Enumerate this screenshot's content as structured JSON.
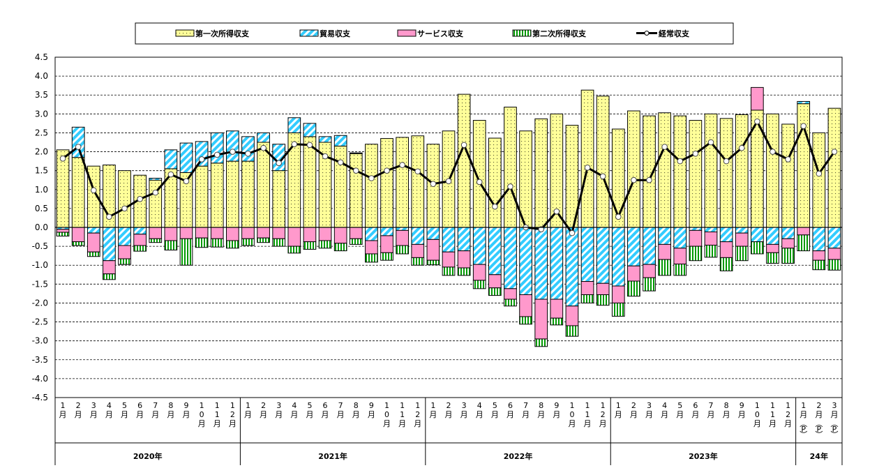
{
  "chart_data": {
    "type": "bar",
    "ylim": [
      -4.5,
      4.5
    ],
    "y_ticks": [
      "4.5",
      "4.0",
      "3.5",
      "3.0",
      "2.5",
      "2.0",
      "1.5",
      "1.0",
      "0.5",
      "0.0",
      "-0.5",
      "-1.0",
      "-1.5",
      "-2.0",
      "-2.5",
      "-3.0",
      "-3.5",
      "-4.0",
      "-4.5"
    ],
    "grid": true,
    "legend_position": "top",
    "stacked": true,
    "x": [
      "2020-01",
      "2020-02",
      "2020-03",
      "2020-04",
      "2020-05",
      "2020-06",
      "2020-07",
      "2020-08",
      "2020-09",
      "2020-10",
      "2020-11",
      "2020-12",
      "2021-01",
      "2021-02",
      "2021-03",
      "2021-04",
      "2021-05",
      "2021-06",
      "2021-07",
      "2021-08",
      "2021-09",
      "2021-10",
      "2021-11",
      "2021-12",
      "2022-01",
      "2022-02",
      "2022-03",
      "2022-04",
      "2022-05",
      "2022-06",
      "2022-07",
      "2022-08",
      "2022-09",
      "2022-10",
      "2022-11",
      "2022-12",
      "2023-01",
      "2023-02",
      "2023-03",
      "2023-04",
      "2023-05",
      "2023-06",
      "2023-07",
      "2023-08",
      "2023-09",
      "2023-10",
      "2023-11",
      "2023-12",
      "2024-01",
      "2024-02",
      "2024-03"
    ],
    "month_labels": [
      "1\n月",
      "2\n月",
      "3\n月",
      "4\n月",
      "5\n月",
      "6\n月",
      "7\n月",
      "8\n月",
      "9\n月",
      "1\n0\n月",
      "1\n1\n月",
      "1\n2\n月",
      "1\n月",
      "2\n月",
      "3\n月",
      "4\n月",
      "5\n月",
      "6\n月",
      "7\n月",
      "8\n月",
      "9\n月",
      "1\n0\n月",
      "1\n1\n月",
      "1\n2\n月",
      "1\n月",
      "2\n月",
      "3\n月",
      "4\n月",
      "5\n月",
      "6\n月",
      "7\n月",
      "8\n月",
      "9\n月",
      "1\n0\n月",
      "1\n1\n月",
      "1\n2\n月",
      "1\n月",
      "2\n月",
      "3\n月",
      "4\n月",
      "5\n月",
      "6\n月",
      "7\n月",
      "8\n月",
      "9\n月",
      "1\n0\n月",
      "1\n1\n月",
      "1\n2\n月",
      "1\n月\n︵\nP\n︶",
      "2\n月\n︵\nP\n︶",
      "3\n月\n︵\nP\n︶"
    ],
    "year_groups": [
      {
        "label": "2020年",
        "count": 12
      },
      {
        "label": "2021年",
        "count": 12
      },
      {
        "label": "2022年",
        "count": 12
      },
      {
        "label": "2023年",
        "count": 12
      },
      {
        "label": "24年",
        "count": 3
      }
    ],
    "series": [
      {
        "name": "第一次所得収支",
        "kind": "bar",
        "color": "#FFFF99",
        "values": [
          2.05,
          1.85,
          1.62,
          1.65,
          1.5,
          1.38,
          1.25,
          1.55,
          1.45,
          1.62,
          1.7,
          1.75,
          1.75,
          2.25,
          1.5,
          2.5,
          2.4,
          2.25,
          2.15,
          1.95,
          2.2,
          2.35,
          2.38,
          2.42,
          2.2,
          2.55,
          3.52,
          2.83,
          2.36,
          3.18,
          2.55,
          2.87,
          3.0,
          2.7,
          3.63,
          3.47,
          2.6,
          3.08,
          2.95,
          3.03,
          2.95,
          2.83,
          3.0,
          2.88,
          2.98,
          3.1,
          3.0,
          2.73,
          3.27,
          2.5,
          3.15
        ]
      },
      {
        "name": "貿易収支",
        "kind": "bar",
        "color": "#33CCFF",
        "values": [
          -0.05,
          0.8,
          -0.15,
          -0.88,
          -0.48,
          -0.18,
          0.05,
          0.5,
          0.78,
          0.65,
          0.8,
          0.8,
          0.65,
          0.25,
          0.7,
          0.4,
          0.35,
          0.15,
          0.28,
          0.02,
          -0.35,
          -0.22,
          -0.08,
          -0.45,
          -0.32,
          -0.65,
          -0.62,
          -0.98,
          -1.25,
          -1.62,
          -1.78,
          -1.9,
          -1.9,
          -2.08,
          -1.43,
          -1.48,
          -1.55,
          -1.02,
          -0.98,
          -0.45,
          -0.55,
          -0.08,
          -0.12,
          -0.38,
          -0.15,
          -0.38,
          -0.45,
          -0.3,
          0.06,
          -0.62,
          -0.55
        ]
      },
      {
        "name": "サービス収支",
        "kind": "bar",
        "color": "#FF99CC",
        "values": [
          -0.08,
          -0.38,
          -0.5,
          -0.35,
          -0.35,
          -0.3,
          -0.3,
          -0.35,
          -0.3,
          -0.28,
          -0.3,
          -0.35,
          -0.3,
          -0.28,
          -0.3,
          -0.5,
          -0.38,
          -0.35,
          -0.42,
          -0.3,
          -0.35,
          -0.45,
          -0.4,
          -0.35,
          -0.55,
          -0.4,
          -0.45,
          -0.42,
          -0.35,
          -0.28,
          -0.58,
          -1.05,
          -0.5,
          -0.52,
          -0.35,
          -0.3,
          -0.45,
          -0.4,
          -0.35,
          -0.4,
          -0.42,
          -0.42,
          -0.35,
          -0.42,
          -0.35,
          0.6,
          -0.22,
          -0.25,
          -0.2,
          -0.25,
          -0.3
        ]
      },
      {
        "name": "第二次所得収支",
        "kind": "bar",
        "color": "#009900",
        "values": [
          -0.1,
          -0.1,
          -0.12,
          -0.15,
          -0.15,
          -0.15,
          -0.1,
          -0.25,
          -0.7,
          -0.25,
          -0.22,
          -0.2,
          -0.18,
          -0.12,
          -0.2,
          -0.18,
          -0.2,
          -0.2,
          -0.2,
          -0.15,
          -0.22,
          -0.2,
          -0.22,
          -0.2,
          -0.12,
          -0.22,
          -0.2,
          -0.22,
          -0.2,
          -0.18,
          -0.2,
          -0.2,
          -0.18,
          -0.28,
          -0.22,
          -0.28,
          -0.35,
          -0.4,
          -0.35,
          -0.42,
          -0.3,
          -0.38,
          -0.32,
          -0.35,
          -0.38,
          -0.32,
          -0.28,
          -0.4,
          -0.42,
          -0.25,
          -0.28
        ]
      },
      {
        "name": "経常収支",
        "kind": "line",
        "color": "#000000",
        "values": [
          1.82,
          2.13,
          0.98,
          0.28,
          0.5,
          0.75,
          0.92,
          1.4,
          1.22,
          1.8,
          1.92,
          2.0,
          1.95,
          2.1,
          1.7,
          2.2,
          2.18,
          1.88,
          1.72,
          1.5,
          1.3,
          1.5,
          1.65,
          1.48,
          1.15,
          1.22,
          2.18,
          1.2,
          0.55,
          1.08,
          0.0,
          -0.05,
          0.42,
          -0.15,
          1.58,
          1.35,
          0.28,
          1.25,
          1.25,
          2.13,
          1.75,
          1.95,
          2.25,
          1.75,
          2.1,
          2.8,
          2.0,
          1.8,
          2.68,
          1.42,
          2.0
        ]
      }
    ]
  }
}
